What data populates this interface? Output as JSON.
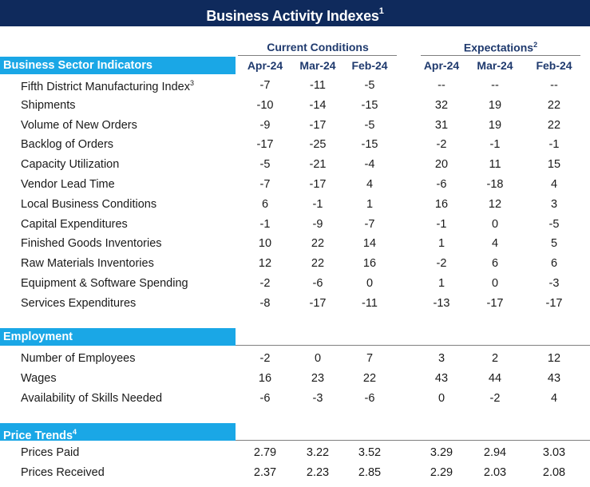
{
  "title": "Business Activity Indexes",
  "title_note": "1",
  "groups": {
    "current": "Current Conditions",
    "expectations": "Expectations",
    "expectations_note": "2"
  },
  "columns": [
    "Apr-24",
    "Mar-24",
    "Feb-24",
    "Apr-24",
    "Mar-24",
    "Feb-24"
  ],
  "sections": [
    {
      "name": "Business Sector Indicators",
      "note": "",
      "rows": [
        {
          "label": "Fifth District Manufacturing Index",
          "note": "3",
          "values": [
            "-7",
            "-11",
            "-5",
            "--",
            "--",
            "--"
          ]
        },
        {
          "label": "Shipments",
          "note": "",
          "values": [
            "-10",
            "-14",
            "-15",
            "32",
            "19",
            "22"
          ]
        },
        {
          "label": "Volume of New Orders",
          "note": "",
          "values": [
            "-9",
            "-17",
            "-5",
            "31",
            "19",
            "22"
          ]
        },
        {
          "label": "Backlog of Orders",
          "note": "",
          "values": [
            "-17",
            "-25",
            "-15",
            "-2",
            "-1",
            "-1"
          ]
        },
        {
          "label": "Capacity Utilization",
          "note": "",
          "values": [
            "-5",
            "-21",
            "-4",
            "20",
            "11",
            "15"
          ]
        },
        {
          "label": "Vendor Lead Time",
          "note": "",
          "values": [
            "-7",
            "-17",
            "4",
            "-6",
            "-18",
            "4"
          ]
        },
        {
          "label": "Local Business Conditions",
          "note": "",
          "values": [
            "6",
            "-1",
            "1",
            "16",
            "12",
            "3"
          ]
        },
        {
          "label": "Capital Expenditures",
          "note": "",
          "values": [
            "-1",
            "-9",
            "-7",
            "-1",
            "0",
            "-5"
          ]
        },
        {
          "label": "Finished Goods Inventories",
          "note": "",
          "values": [
            "10",
            "22",
            "14",
            "1",
            "4",
            "5"
          ]
        },
        {
          "label": "Raw Materials Inventories",
          "note": "",
          "values": [
            "12",
            "22",
            "16",
            "-2",
            "6",
            "6"
          ]
        },
        {
          "label": "Equipment & Software Spending",
          "note": "",
          "values": [
            "-2",
            "-6",
            "0",
            "1",
            "0",
            "-3"
          ]
        },
        {
          "label": "Services Expenditures",
          "note": "",
          "values": [
            "-8",
            "-17",
            "-11",
            "-13",
            "-17",
            "-17"
          ]
        }
      ]
    },
    {
      "name": "Employment",
      "note": "",
      "rows": [
        {
          "label": "Number of Employees",
          "note": "",
          "values": [
            "-2",
            "0",
            "7",
            "3",
            "2",
            "12"
          ]
        },
        {
          "label": "Wages",
          "note": "",
          "values": [
            "16",
            "23",
            "22",
            "43",
            "44",
            "43"
          ]
        },
        {
          "label": "Availability of Skills Needed",
          "note": "",
          "values": [
            "-6",
            "-3",
            "-6",
            "0",
            "-2",
            "4"
          ]
        }
      ]
    },
    {
      "name": "Price Trends",
      "note": "4",
      "rows": [
        {
          "label": "Prices Paid",
          "note": "",
          "values": [
            "2.79",
            "3.22",
            "3.52",
            "3.29",
            "2.94",
            "3.03"
          ]
        },
        {
          "label": "Prices Received",
          "note": "",
          "values": [
            "2.37",
            "2.23",
            "2.85",
            "2.29",
            "2.03",
            "2.08"
          ]
        }
      ]
    }
  ]
}
